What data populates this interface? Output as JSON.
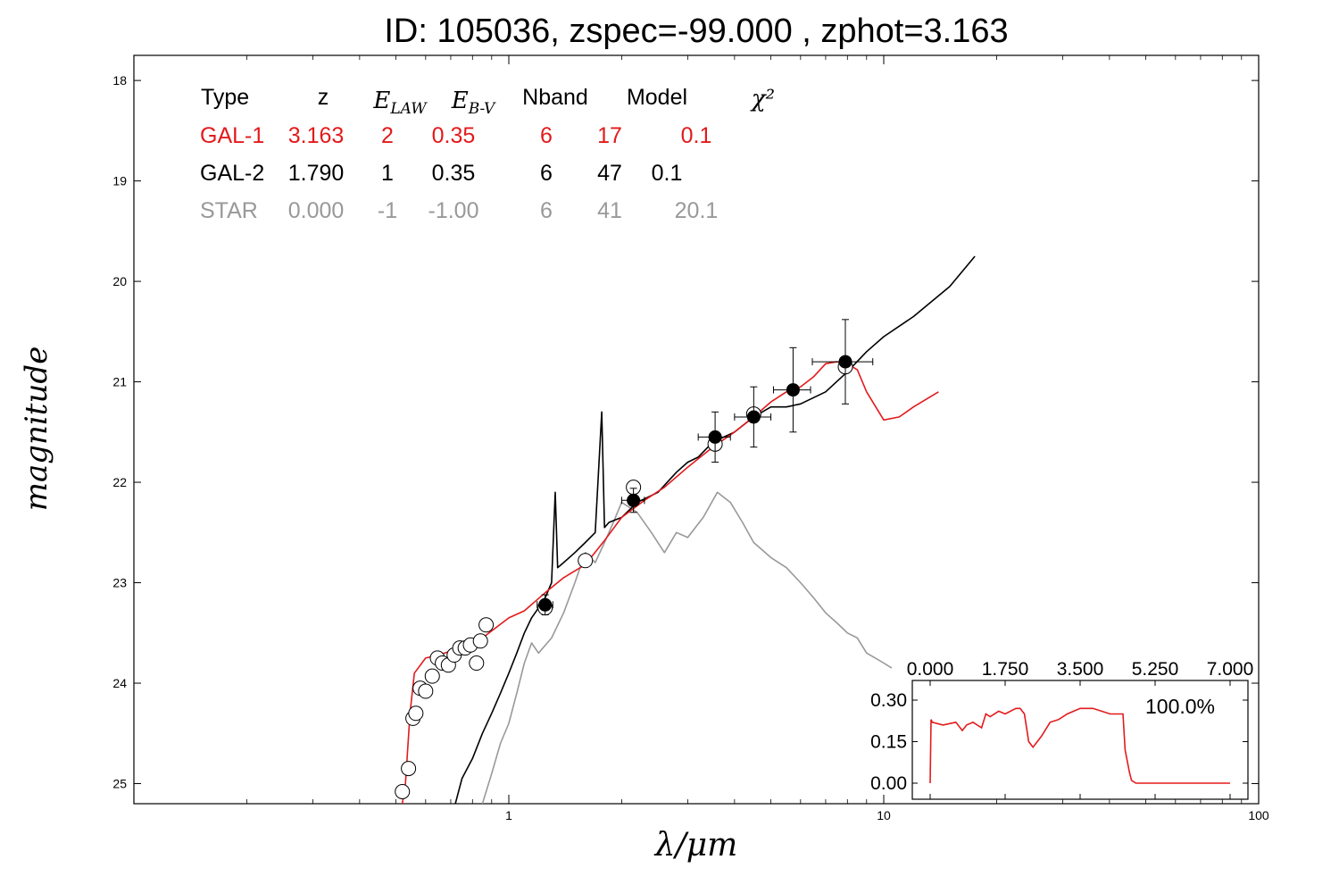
{
  "title": "ID:  105036, zspec=-99.000 , zphot=3.163",
  "colors": {
    "gal1": "#e31a1c",
    "gal2": "#000000",
    "star": "#999999",
    "frame": "#000000"
  },
  "main": {
    "xlabel": "λ/μm",
    "ylabel": "magnitude",
    "x_scale": "log",
    "y_inverted": true,
    "x_ticks": [
      "1",
      "10",
      "100"
    ],
    "y_ticks": [
      "18",
      "19",
      "20",
      "21",
      "22",
      "23",
      "24",
      "25"
    ]
  },
  "fit_table": {
    "headers": [
      "Type",
      "z",
      "E_LAW",
      "E_B-V",
      "Nband",
      "Model",
      "χ²"
    ],
    "rows": [
      {
        "type": "GAL-1",
        "z": "3.163",
        "elaw": "2",
        "ebv": "0.35",
        "nband": "6",
        "model": "17",
        "chi2": "0.1",
        "color": "#e31a1c"
      },
      {
        "type": "GAL-2",
        "z": "1.790",
        "elaw": "1",
        "ebv": "0.35",
        "nband": "6",
        "model": "47",
        "chi2": "0.1",
        "color": "#000000"
      },
      {
        "type": "STAR",
        "z": "0.000",
        "elaw": "-1",
        "ebv": "-1.00",
        "nband": "6",
        "model": "41",
        "chi2": "20.1",
        "color": "#999999"
      }
    ]
  },
  "inset": {
    "x_ticks": [
      "0.000",
      "1.750",
      "3.500",
      "5.250",
      "7.000"
    ],
    "y_ticks": [
      "0.30",
      "0.15",
      "0.00"
    ],
    "annotation": "100.0%"
  },
  "chart_data": [
    {
      "type": "scatter",
      "role": "sed",
      "x_scale": "log",
      "xlim": [
        0.2,
        100
      ],
      "ylim": [
        25.2,
        17.75
      ],
      "series": [
        {
          "kind": "filled_points",
          "points": [
            {
              "x": 1.25,
              "y": 23.22,
              "xerr": 0.06,
              "yerr": 0.1
            },
            {
              "x": 2.15,
              "y": 22.18,
              "xerr": 0.15,
              "yerr": 0.12
            },
            {
              "x": 3.55,
              "y": 21.55,
              "xerr": 0.35,
              "yerr": 0.25
            },
            {
              "x": 4.5,
              "y": 21.35,
              "xerr": 0.5,
              "yerr": 0.3
            },
            {
              "x": 5.73,
              "y": 21.08,
              "xerr": 0.65,
              "yerr": 0.42
            },
            {
              "x": 7.9,
              "y": 20.8,
              "xerr": 1.45,
              "yerr": 0.42
            }
          ]
        },
        {
          "kind": "open_points",
          "points": [
            {
              "x": 0.52,
              "y": 25.08
            },
            {
              "x": 0.54,
              "y": 24.85
            },
            {
              "x": 0.555,
              "y": 24.35
            },
            {
              "x": 0.565,
              "y": 24.3
            },
            {
              "x": 0.58,
              "y": 24.05
            },
            {
              "x": 0.6,
              "y": 24.08
            },
            {
              "x": 0.625,
              "y": 23.93
            },
            {
              "x": 0.645,
              "y": 23.75
            },
            {
              "x": 0.665,
              "y": 23.8
            },
            {
              "x": 0.69,
              "y": 23.82
            },
            {
              "x": 0.715,
              "y": 23.72
            },
            {
              "x": 0.74,
              "y": 23.65
            },
            {
              "x": 0.765,
              "y": 23.65
            },
            {
              "x": 0.79,
              "y": 23.62
            },
            {
              "x": 0.82,
              "y": 23.8
            },
            {
              "x": 0.84,
              "y": 23.58
            },
            {
              "x": 0.87,
              "y": 23.42
            },
            {
              "x": 1.25,
              "y": 23.25
            },
            {
              "x": 1.6,
              "y": 22.78
            },
            {
              "x": 2.15,
              "y": 22.05
            },
            {
              "x": 3.55,
              "y": 21.62
            },
            {
              "x": 4.5,
              "y": 21.32
            },
            {
              "x": 7.9,
              "y": 20.85
            }
          ]
        },
        {
          "name": "GAL-1",
          "kind": "line",
          "color": "#e31a1c",
          "x": [
            0.52,
            0.53,
            0.545,
            0.56,
            0.6,
            0.65,
            0.7,
            0.75,
            0.8,
            0.85,
            0.9,
            1.0,
            1.1,
            1.25,
            1.4,
            1.6,
            1.8,
            2.0,
            2.3,
            2.6,
            3.0,
            3.5,
            4.0,
            4.5,
            5.0,
            5.5,
            6.0,
            6.5,
            7.0,
            7.5,
            8.0,
            8.5,
            9.0,
            10.0,
            11.0,
            12.0,
            14.0
          ],
          "y": [
            25.2,
            25.0,
            24.3,
            23.9,
            23.75,
            23.72,
            23.68,
            23.62,
            23.58,
            23.55,
            23.48,
            23.35,
            23.28,
            23.1,
            22.95,
            22.82,
            22.58,
            22.35,
            22.18,
            22.05,
            21.85,
            21.65,
            21.5,
            21.35,
            21.2,
            21.1,
            21.05,
            20.95,
            20.82,
            20.8,
            20.82,
            20.88,
            21.1,
            21.38,
            21.35,
            21.25,
            21.1
          ]
        },
        {
          "name": "GAL-2",
          "kind": "line",
          "color": "#000000",
          "x": [
            0.72,
            0.75,
            0.8,
            0.85,
            0.9,
            0.95,
            1.0,
            1.05,
            1.1,
            1.15,
            1.2,
            1.25,
            1.3,
            1.33,
            1.35,
            1.4,
            1.5,
            1.6,
            1.7,
            1.77,
            1.8,
            1.85,
            2.0,
            2.2,
            2.5,
            2.8,
            3.0,
            3.2,
            3.5,
            4.0,
            4.5,
            5.0,
            5.5,
            6.0,
            7.0,
            8.0,
            9.0,
            10.0,
            12.0,
            15.0,
            17.5
          ],
          "y": [
            25.2,
            24.95,
            24.75,
            24.5,
            24.3,
            24.1,
            23.9,
            23.7,
            23.5,
            23.35,
            23.25,
            23.15,
            23.0,
            22.1,
            22.85,
            22.8,
            22.7,
            22.6,
            22.5,
            21.3,
            22.45,
            22.4,
            22.35,
            22.2,
            22.1,
            21.9,
            21.8,
            21.75,
            21.6,
            21.5,
            21.35,
            21.25,
            21.25,
            21.22,
            21.1,
            20.9,
            20.7,
            20.55,
            20.35,
            20.05,
            19.75
          ]
        },
        {
          "name": "STAR",
          "kind": "line",
          "color": "#999999",
          "x": [
            0.85,
            0.9,
            0.95,
            1.0,
            1.05,
            1.1,
            1.15,
            1.2,
            1.3,
            1.4,
            1.5,
            1.6,
            1.7,
            1.8,
            1.9,
            2.0,
            2.2,
            2.4,
            2.6,
            2.8,
            3.0,
            3.3,
            3.6,
            3.9,
            4.2,
            4.5,
            5.0,
            5.5,
            6.0,
            6.5,
            7.0,
            7.5,
            8.0,
            8.5,
            9.0,
            9.5,
            10.0,
            10.5
          ],
          "y": [
            25.2,
            24.9,
            24.6,
            24.4,
            24.1,
            23.8,
            23.6,
            23.7,
            23.55,
            23.3,
            23.0,
            22.7,
            22.8,
            22.6,
            22.4,
            22.2,
            22.3,
            22.5,
            22.7,
            22.5,
            22.55,
            22.35,
            22.1,
            22.2,
            22.4,
            22.6,
            22.75,
            22.85,
            23.0,
            23.15,
            23.3,
            23.4,
            23.5,
            23.55,
            23.7,
            23.75,
            23.8,
            23.85
          ]
        }
      ]
    },
    {
      "type": "line",
      "role": "pdz_inset",
      "xlim": [
        0,
        7
      ],
      "ylim": [
        0,
        0.3
      ],
      "series": [
        {
          "color": "#e31a1c",
          "x": [
            0.0,
            0.02,
            0.05,
            0.3,
            0.6,
            0.75,
            0.85,
            1.0,
            1.2,
            1.3,
            1.4,
            1.6,
            1.75,
            2.0,
            2.1,
            2.2,
            2.3,
            2.4,
            2.6,
            2.8,
            3.0,
            3.2,
            3.5,
            3.8,
            4.0,
            4.2,
            4.5,
            4.55,
            4.6,
            4.65,
            4.7,
            4.8,
            5.0,
            6.0,
            7.0
          ],
          "y": [
            0.0,
            0.23,
            0.22,
            0.21,
            0.22,
            0.19,
            0.21,
            0.22,
            0.2,
            0.25,
            0.24,
            0.26,
            0.25,
            0.27,
            0.27,
            0.25,
            0.15,
            0.13,
            0.17,
            0.22,
            0.23,
            0.25,
            0.27,
            0.27,
            0.26,
            0.25,
            0.25,
            0.12,
            0.08,
            0.04,
            0.01,
            0.0,
            0.0,
            0.0,
            0.0
          ]
        }
      ]
    }
  ]
}
